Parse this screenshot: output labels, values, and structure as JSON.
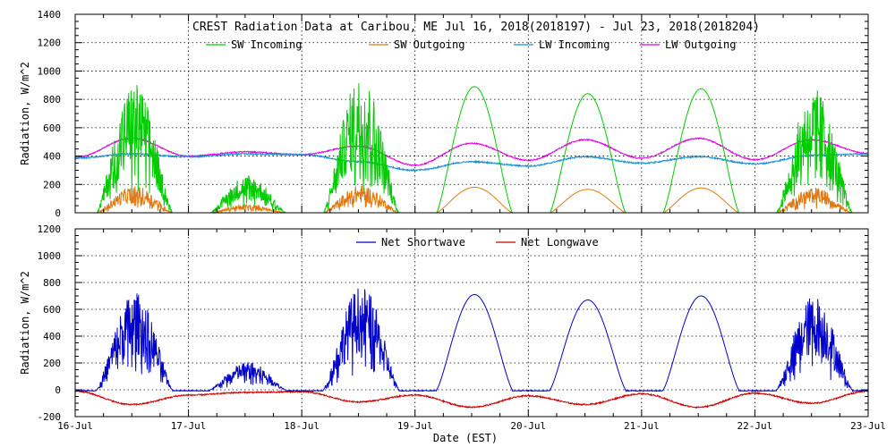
{
  "chart_data": [
    {
      "type": "line",
      "title": "CREST Radiation Data at Caribou, ME   Jul 16, 2018(2018197) - Jul 23, 2018(2018204)",
      "xlabel": "",
      "ylabel": "Radiation, W/m^2",
      "xlim": [
        "16-Jul",
        "23-Jul"
      ],
      "ylim": [
        0,
        1400
      ],
      "y_ticks": [
        "0",
        "200",
        "400",
        "600",
        "800",
        "1000",
        "1200",
        "1400"
      ],
      "grid": true,
      "legend_position": "top",
      "series": [
        {
          "name": "SW Incoming",
          "color": "#00cc00",
          "peaks": [
            920,
            270,
            980,
            890,
            840,
            875,
            880
          ],
          "cloudy": [
            true,
            true,
            true,
            false,
            false,
            false,
            true
          ]
        },
        {
          "name": "SW Outgoing",
          "color": "#e07a10",
          "peaks": [
            190,
            60,
            195,
            180,
            165,
            175,
            180
          ]
        },
        {
          "name": "LW Incoming",
          "color": "#1a8fd0",
          "daily_profile": [
            [
              0.0,
              385
            ],
            [
              0.5,
              415
            ],
            [
              1.0,
              395
            ],
            [
              1.5,
              415
            ],
            [
              2.0,
              410
            ],
            [
              2.5,
              360
            ],
            [
              3.0,
              300
            ],
            [
              3.5,
              360
            ],
            [
              4.0,
              330
            ],
            [
              4.5,
              395
            ],
            [
              5.0,
              350
            ],
            [
              5.5,
              395
            ],
            [
              6.0,
              345
            ],
            [
              6.5,
              405
            ],
            [
              7.0,
              415
            ]
          ]
        },
        {
          "name": "LW Outgoing",
          "color": "#dd00dd",
          "daily_profile": [
            [
              0.0,
              390
            ],
            [
              0.5,
              525
            ],
            [
              1.0,
              400
            ],
            [
              1.5,
              430
            ],
            [
              2.0,
              410
            ],
            [
              2.5,
              470
            ],
            [
              3.0,
              335
            ],
            [
              3.5,
              490
            ],
            [
              4.0,
              370
            ],
            [
              4.5,
              515
            ],
            [
              5.0,
              385
            ],
            [
              5.5,
              525
            ],
            [
              6.0,
              375
            ],
            [
              6.5,
              515
            ],
            [
              7.0,
              420
            ]
          ]
        }
      ]
    },
    {
      "type": "line",
      "title": "",
      "xlabel": "Date (EST)",
      "ylabel": "Radiation, W/m^2",
      "x_ticks": [
        "16-Jul",
        "17-Jul",
        "18-Jul",
        "19-Jul",
        "20-Jul",
        "21-Jul",
        "22-Jul",
        "23-Jul"
      ],
      "ylim": [
        -200,
        1200
      ],
      "y_ticks": [
        "-200",
        "0",
        "200",
        "400",
        "600",
        "800",
        "1000",
        "1200"
      ],
      "grid": true,
      "legend_position": "top",
      "series": [
        {
          "name": "Net Shortwave",
          "color": "#0000cc",
          "peaks": [
            730,
            210,
            780,
            710,
            670,
            700,
            710
          ],
          "cloudy": [
            true,
            true,
            true,
            false,
            false,
            false,
            true
          ]
        },
        {
          "name": "Net Longwave",
          "color": "#cc0000",
          "daily_profile": [
            [
              0.0,
              -10
            ],
            [
              0.5,
              -110
            ],
            [
              1.0,
              -40
            ],
            [
              1.5,
              -20
            ],
            [
              2.0,
              -15
            ],
            [
              2.5,
              -90
            ],
            [
              3.0,
              -40
            ],
            [
              3.5,
              -130
            ],
            [
              4.0,
              -45
            ],
            [
              4.5,
              -110
            ],
            [
              5.0,
              -30
            ],
            [
              5.5,
              -130
            ],
            [
              6.0,
              -25
            ],
            [
              6.5,
              -100
            ],
            [
              7.0,
              -10
            ]
          ]
        }
      ]
    }
  ]
}
